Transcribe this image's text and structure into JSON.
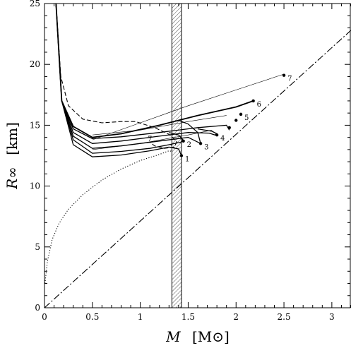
{
  "chart_data": {
    "type": "line",
    "xlabel": "M",
    "xlabel_unit": "[M⊙]",
    "ylabel": "R∞",
    "ylabel_unit": "[km]",
    "xlim": [
      0,
      3.2
    ],
    "ylim": [
      0,
      25
    ],
    "x_ticks": [
      0,
      0.5,
      1,
      1.5,
      2,
      2.5,
      3
    ],
    "x_tick_labels": [
      "0",
      "0.5",
      "1",
      "1.5",
      "2",
      "2.5",
      "3"
    ],
    "y_ticks": [
      0,
      5,
      10,
      15,
      20,
      25
    ],
    "y_tick_labels": [
      "0",
      "5",
      "10",
      "15",
      "20",
      "25"
    ],
    "grid": false,
    "band": {
      "x_from": 1.33,
      "x_to": 1.43,
      "pattern": "hatched"
    },
    "limit_line": {
      "style": "dash-dot",
      "points": [
        [
          0,
          0
        ],
        [
          3.2,
          22.8
        ]
      ]
    },
    "series": [
      {
        "id": "1",
        "style": "solid",
        "width": 1.3,
        "points": [
          [
            0.12,
            25
          ],
          [
            0.18,
            17
          ],
          [
            0.3,
            13.4
          ],
          [
            0.5,
            12.4
          ],
          [
            0.8,
            12.55
          ],
          [
            1.1,
            12.9
          ],
          [
            1.3,
            13.2
          ],
          [
            1.4,
            13.05
          ],
          [
            1.43,
            12.5
          ]
        ]
      },
      {
        "id": "2",
        "style": "solid",
        "width": 1.3,
        "points": [
          [
            0.12,
            25
          ],
          [
            0.18,
            17
          ],
          [
            0.3,
            13.8
          ],
          [
            0.5,
            12.7
          ],
          [
            0.8,
            12.85
          ],
          [
            1.1,
            13.1
          ],
          [
            1.3,
            13.4
          ],
          [
            1.42,
            13.6
          ],
          [
            1.45,
            13.75
          ],
          [
            1.4,
            14.2
          ],
          [
            1.3,
            14.4
          ]
        ]
      },
      {
        "id": "3",
        "style": "solid",
        "width": 1.3,
        "points": [
          [
            0.12,
            25
          ],
          [
            0.18,
            17
          ],
          [
            0.3,
            14.1
          ],
          [
            0.5,
            13.1
          ],
          [
            0.8,
            13.3
          ],
          [
            1.2,
            13.7
          ],
          [
            1.5,
            14.0
          ],
          [
            1.63,
            13.5
          ],
          [
            1.6,
            14.4
          ],
          [
            1.5,
            15.1
          ],
          [
            1.4,
            15.4
          ]
        ]
      },
      {
        "id": "4",
        "style": "solid",
        "width": 1.3,
        "points": [
          [
            0.12,
            25
          ],
          [
            0.18,
            17
          ],
          [
            0.3,
            14.4
          ],
          [
            0.5,
            13.5
          ],
          [
            0.8,
            13.7
          ],
          [
            1.2,
            14.1
          ],
          [
            1.5,
            14.4
          ],
          [
            1.72,
            14.35
          ],
          [
            1.78,
            14.2
          ],
          [
            1.8,
            14.3
          ],
          [
            1.75,
            14.5
          ],
          [
            1.6,
            14.7
          ]
        ]
      },
      {
        "id": "5",
        "style": "solid",
        "width": 1.3,
        "points": [
          [
            0.12,
            25
          ],
          [
            0.18,
            17
          ],
          [
            0.3,
            14.7
          ],
          [
            0.5,
            13.9
          ],
          [
            0.8,
            14.05
          ],
          [
            1.2,
            14.4
          ],
          [
            1.6,
            14.8
          ],
          [
            1.9,
            15.0
          ],
          [
            1.93,
            14.6
          ]
        ]
      },
      {
        "id": "6",
        "style": "solid",
        "width": 1.8,
        "points": [
          [
            0.12,
            25
          ],
          [
            0.18,
            17
          ],
          [
            0.3,
            14.9
          ],
          [
            0.5,
            14.0
          ],
          [
            0.8,
            14.3
          ],
          [
            1.2,
            15.0
          ],
          [
            1.6,
            15.8
          ],
          [
            2.0,
            16.5
          ],
          [
            2.18,
            17.0
          ]
        ]
      },
      {
        "id": "7",
        "style": "solid",
        "width": 0.6,
        "points": [
          [
            0.5,
            13.8
          ],
          [
            1.0,
            15.2
          ],
          [
            1.5,
            16.6
          ],
          [
            2.0,
            17.9
          ],
          [
            2.5,
            19.2
          ]
        ]
      },
      {
        "id": "dashed",
        "style": "dashed",
        "width": 1.1,
        "points": [
          [
            0.12,
            25
          ],
          [
            0.17,
            19
          ],
          [
            0.25,
            16.6
          ],
          [
            0.4,
            15.5
          ],
          [
            0.6,
            15.2
          ],
          [
            0.8,
            15.3
          ],
          [
            0.95,
            15.3
          ],
          [
            1.15,
            14.8
          ],
          [
            1.3,
            14.25
          ],
          [
            1.38,
            13.7
          ],
          [
            1.36,
            13.2
          ],
          [
            1.25,
            13.1
          ],
          [
            1.15,
            13.3
          ],
          [
            1.1,
            13.6
          ]
        ]
      },
      {
        "id": "dotted",
        "style": "dotted",
        "width": 1.1,
        "points": [
          [
            0.005,
            2
          ],
          [
            0.03,
            3.8
          ],
          [
            0.08,
            5.6
          ],
          [
            0.15,
            6.9
          ],
          [
            0.25,
            8.1
          ],
          [
            0.4,
            9.3
          ],
          [
            0.6,
            10.5
          ],
          [
            0.8,
            11.4
          ],
          [
            1.0,
            12.1
          ],
          [
            1.2,
            12.6
          ],
          [
            1.3,
            12.9
          ],
          [
            1.33,
            12.85
          ],
          [
            1.32,
            13.5
          ]
        ]
      },
      {
        "id": "thin-1",
        "style": "solid",
        "width": 0.6,
        "points": [
          [
            0.5,
            13.0
          ],
          [
            1.0,
            13.5
          ],
          [
            1.5,
            14.2
          ],
          [
            1.75,
            14.6
          ]
        ]
      },
      {
        "id": "thin-2",
        "style": "solid",
        "width": 0.6,
        "points": [
          [
            0.5,
            14.2
          ],
          [
            1.0,
            14.6
          ],
          [
            1.5,
            15.3
          ],
          [
            1.9,
            15.8
          ]
        ]
      }
    ],
    "marked_points": [
      {
        "label": "1",
        "x": 1.43,
        "y": 12.5
      },
      {
        "label": "2",
        "x": 1.45,
        "y": 13.7
      },
      {
        "label": "3",
        "x": 1.63,
        "y": 13.5
      },
      {
        "label": "4",
        "x": 1.8,
        "y": 14.2
      },
      {
        "label": "",
        "x": 1.93,
        "y": 14.8
      },
      {
        "label": "",
        "x": 2.0,
        "y": 15.4
      },
      {
        "label": "5",
        "x": 2.05,
        "y": 15.9
      },
      {
        "label": "6",
        "x": 2.18,
        "y": 17.0
      },
      {
        "label": "7",
        "x": 2.5,
        "y": 19.1
      }
    ],
    "annotations": [
      {
        "text": "7",
        "x": 1.1,
        "y": 13.7
      }
    ]
  }
}
